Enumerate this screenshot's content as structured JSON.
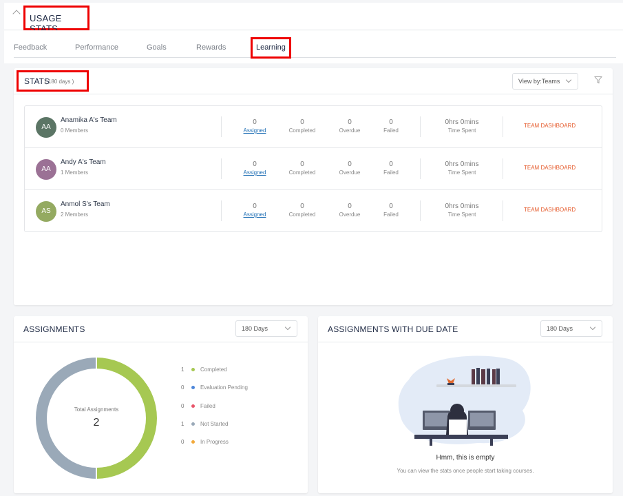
{
  "header": {
    "title": "USAGE STATS"
  },
  "tabs": [
    {
      "label": "Feedback"
    },
    {
      "label": "Performance"
    },
    {
      "label": "Goals"
    },
    {
      "label": "Rewards"
    },
    {
      "label": "Learning",
      "active": true
    }
  ],
  "stats": {
    "title": "STATS",
    "days": "( 180 days )",
    "view_by": "View by:Teams",
    "stat_labels": [
      "Assigned",
      "Completed",
      "Overdue",
      "Failed"
    ],
    "time_label": "Time Spent",
    "link_label": "TEAM DASHBOARD",
    "teams": [
      {
        "initials": "AA",
        "name": "Anamika A's Team",
        "members": "0 Members",
        "avatar_color": "#5b7565",
        "assigned": "0",
        "completed": "0",
        "overdue": "0",
        "failed": "0",
        "time": "0hrs 0mins"
      },
      {
        "initials": "AA",
        "name": "Andy A's Team",
        "members": "1 Members",
        "avatar_color": "#9b7195",
        "assigned": "0",
        "completed": "0",
        "overdue": "0",
        "failed": "0",
        "time": "0hrs 0mins"
      },
      {
        "initials": "AS",
        "name": "Anmol S's Team",
        "members": "2 Members",
        "avatar_color": "#94aa61",
        "assigned": "0",
        "completed": "0",
        "overdue": "0",
        "failed": "0",
        "time": "0hrs 0mins"
      }
    ]
  },
  "assignments": {
    "title": "ASSIGNMENTS",
    "period": "180 Days",
    "center_label": "Total Assignments",
    "total": "2",
    "legend": [
      {
        "count": "1",
        "label": "Completed",
        "color": "#a6c852"
      },
      {
        "count": "0",
        "label": "Evaluation Pending",
        "color": "#4d86d9"
      },
      {
        "count": "0",
        "label": "Failed",
        "color": "#e8556a"
      },
      {
        "count": "1",
        "label": "Not Started",
        "color": "#9aa9b8"
      },
      {
        "count": "0",
        "label": "In Progress",
        "color": "#f2a93b"
      }
    ]
  },
  "due": {
    "title": "ASSIGNMENTS WITH DUE DATE",
    "period": "180 Days",
    "empty_title": "Hmm, this is empty",
    "empty_sub": "You can view the stats once people start taking courses."
  }
}
